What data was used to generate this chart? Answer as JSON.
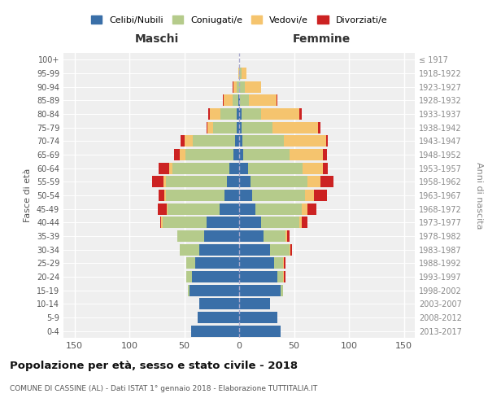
{
  "age_groups": [
    "0-4",
    "5-9",
    "10-14",
    "15-19",
    "20-24",
    "25-29",
    "30-34",
    "35-39",
    "40-44",
    "45-49",
    "50-54",
    "55-59",
    "60-64",
    "65-69",
    "70-74",
    "75-79",
    "80-84",
    "85-89",
    "90-94",
    "95-99",
    "100+"
  ],
  "birth_years": [
    "2013-2017",
    "2008-2012",
    "2003-2007",
    "1998-2002",
    "1993-1997",
    "1988-1992",
    "1983-1987",
    "1978-1982",
    "1973-1977",
    "1968-1972",
    "1963-1967",
    "1958-1962",
    "1953-1957",
    "1948-1952",
    "1943-1947",
    "1938-1942",
    "1933-1937",
    "1928-1932",
    "1923-1927",
    "1918-1922",
    "≤ 1917"
  ],
  "maschi": {
    "celibi": [
      44,
      38,
      36,
      45,
      43,
      40,
      36,
      32,
      30,
      18,
      13,
      11,
      9,
      5,
      4,
      2,
      2,
      1,
      0,
      0,
      0
    ],
    "coniugati": [
      0,
      0,
      0,
      2,
      5,
      8,
      18,
      24,
      40,
      47,
      54,
      56,
      52,
      44,
      38,
      22,
      15,
      5,
      2,
      0,
      0
    ],
    "vedovi": [
      0,
      0,
      0,
      0,
      0,
      0,
      0,
      0,
      1,
      1,
      1,
      2,
      3,
      5,
      8,
      5,
      10,
      8,
      3,
      1,
      0
    ],
    "divorziati": [
      0,
      0,
      0,
      0,
      0,
      0,
      0,
      0,
      1,
      8,
      5,
      10,
      9,
      5,
      3,
      1,
      1,
      1,
      1,
      0,
      0
    ]
  },
  "femmine": {
    "nubili": [
      38,
      35,
      28,
      38,
      35,
      32,
      28,
      22,
      20,
      15,
      12,
      10,
      8,
      4,
      3,
      2,
      2,
      1,
      0,
      0,
      0
    ],
    "coniugate": [
      0,
      0,
      0,
      2,
      5,
      8,
      18,
      20,
      35,
      42,
      48,
      52,
      50,
      42,
      38,
      28,
      18,
      8,
      5,
      2,
      0
    ],
    "vedove": [
      0,
      0,
      0,
      0,
      1,
      1,
      1,
      2,
      2,
      5,
      8,
      12,
      18,
      30,
      38,
      42,
      35,
      25,
      15,
      5,
      0
    ],
    "divorziate": [
      0,
      0,
      0,
      0,
      1,
      1,
      1,
      2,
      5,
      8,
      12,
      12,
      5,
      4,
      2,
      2,
      2,
      1,
      0,
      0,
      0
    ]
  },
  "colors": {
    "celibi": "#3a6fa8",
    "coniugati": "#b5cb8b",
    "vedovi": "#f5c46e",
    "divorziati": "#cc2222"
  },
  "xlim": 160,
  "title": "Popolazione per età, sesso e stato civile - 2018",
  "subtitle": "COMUNE DI CASSINE (AL) - Dati ISTAT 1° gennaio 2018 - Elaborazione TUTTITALIA.IT",
  "xlabel_left": "Maschi",
  "xlabel_right": "Femmine",
  "ylabel": "Fasce di età",
  "ylabel_right": "Anni di nascita",
  "legend": [
    "Celibi/Nubili",
    "Coniugati/e",
    "Vedovi/e",
    "Divorziati/e"
  ]
}
